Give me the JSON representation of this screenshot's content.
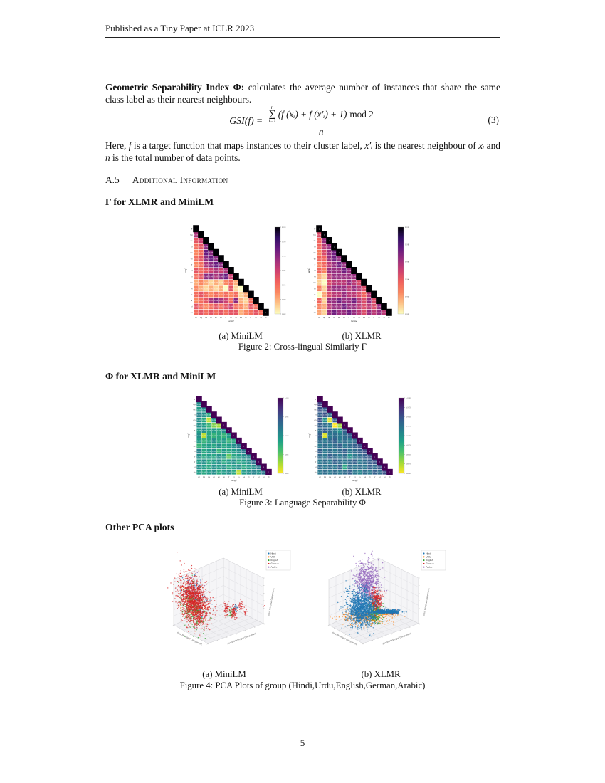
{
  "header": {
    "text": "Published as a Tiny Paper at ICLR 2023"
  },
  "page_number": "5",
  "body": {
    "para1_lead": "Geometric Separability Index Φ:",
    "para1_rest": " calculates the average number of instances that share the same class label as their nearest neighbours.",
    "equation": {
      "lhs": "GSI(f)",
      "eq": "=",
      "sum_top": "n",
      "sigma": "∑",
      "sum_bottom": "i=1",
      "numerator_math": "(f (xᵢ) + f (x′ᵢ) + 1)",
      "numerator_mod": "mod 2",
      "denominator": "n",
      "tag": "(3)"
    },
    "para2_segments": [
      {
        "t": "Here, "
      },
      {
        "t": "f",
        "i": true
      },
      {
        "t": " is a target function that maps instances to their cluster label, "
      },
      {
        "t": "x′ᵢ",
        "i": true
      },
      {
        "t": " is the nearest neighbour of "
      },
      {
        "t": "xᵢ",
        "i": true
      },
      {
        "t": " and "
      },
      {
        "t": "n",
        "i": true
      },
      {
        "t": " is the total number of data points."
      }
    ],
    "heading_a5_num": "A.5",
    "heading_a5_title": "Additional Information",
    "heading_gamma": "Γ for XLMR and MiniLM",
    "heading_phi": "Φ for XLMR and MiniLM",
    "heading_pca": "Other PCA plots"
  },
  "figures": {
    "fig2": {
      "sub_a": "(a) MiniLM",
      "sub_b": "(b) XLMR",
      "caption": "Figure 2: Cross-lingual Similariy Γ"
    },
    "fig3": {
      "sub_a": "(a) MiniLM",
      "sub_b": "(b) XLMR",
      "caption": "Figure 3: Language Separability Φ"
    },
    "fig4": {
      "sub_a": "(a) MiniLM",
      "sub_b": "(b) XLMR",
      "caption": "Figure 4: PCA Plots of group (Hindi,Urdu,English,German,Arabic)"
    }
  },
  "chart_data": [
    {
      "id": "fig2a",
      "type": "heatmap",
      "model": "MiniLM",
      "measure": "Cross-lingual Similarity Γ",
      "xlabel": "lang2",
      "ylabel": "lang1",
      "languages": [
        "ar",
        "bg",
        "de",
        "el",
        "en",
        "es",
        "fr",
        "hi",
        "ru",
        "sw",
        "th",
        "tr",
        "ur",
        "vi",
        "zh"
      ],
      "colormap_stops": [
        "#fcfdbf",
        "#fec287",
        "#fb8761",
        "#f1605d",
        "#cd4071",
        "#9c2e7f",
        "#671b80",
        "#331067",
        "#000004"
      ],
      "vmin": 0.88,
      "vmax": 1.0,
      "colorbar_ticks": [
        "1.00",
        "0.98",
        "0.96",
        "0.94",
        "0.92",
        "0.90",
        "0.88"
      ],
      "matrix_lower": [
        [
          1.0
        ],
        [
          0.95,
          1.0
        ],
        [
          0.93,
          0.94,
          1.0
        ],
        [
          0.92,
          0.93,
          0.96,
          1.0
        ],
        [
          0.91,
          0.92,
          0.97,
          0.96,
          1.0
        ],
        [
          0.92,
          0.93,
          0.96,
          0.97,
          0.96,
          1.0
        ],
        [
          0.91,
          0.92,
          0.95,
          0.96,
          0.97,
          0.96,
          1.0
        ],
        [
          0.93,
          0.92,
          0.93,
          0.94,
          0.95,
          0.94,
          0.95,
          1.0
        ],
        [
          0.92,
          0.93,
          0.96,
          0.96,
          0.95,
          0.96,
          0.97,
          0.94,
          1.0
        ],
        [
          0.9,
          0.91,
          0.9,
          0.89,
          0.9,
          0.89,
          0.91,
          0.92,
          0.9,
          1.0
        ],
        [
          0.91,
          0.9,
          0.89,
          0.9,
          0.89,
          0.9,
          0.88,
          0.93,
          0.89,
          0.88,
          1.0
        ],
        [
          0.92,
          0.93,
          0.92,
          0.91,
          0.92,
          0.91,
          0.92,
          0.91,
          0.92,
          0.89,
          0.9,
          1.0
        ],
        [
          0.91,
          0.92,
          0.93,
          0.95,
          0.96,
          0.95,
          0.94,
          0.92,
          0.96,
          0.9,
          0.89,
          0.92,
          1.0
        ],
        [
          0.93,
          0.92,
          0.91,
          0.92,
          0.93,
          0.92,
          0.93,
          0.94,
          0.92,
          0.91,
          0.9,
          0.93,
          0.92,
          1.0
        ],
        [
          0.92,
          0.93,
          0.92,
          0.93,
          0.92,
          0.93,
          0.92,
          0.93,
          0.93,
          0.9,
          0.91,
          0.92,
          0.93,
          0.92,
          1.0
        ]
      ]
    },
    {
      "id": "fig2b",
      "type": "heatmap",
      "model": "XLMR",
      "measure": "Cross-lingual Similarity Γ",
      "xlabel": "lang2",
      "ylabel": "lang1",
      "languages": [
        "ar",
        "bg",
        "de",
        "el",
        "en",
        "es",
        "fr",
        "hi",
        "ru",
        "sw",
        "th",
        "tr",
        "ur",
        "vi",
        "zh"
      ],
      "colormap_stops": [
        "#fcfdbf",
        "#fec287",
        "#fb8761",
        "#f1605d",
        "#cd4071",
        "#9c2e7f",
        "#671b80",
        "#331067",
        "#000004"
      ],
      "vmin": 0.89,
      "vmax": 1.0,
      "colorbar_ticks": [
        "1.00",
        "0.98",
        "0.96",
        "0.94",
        "0.92",
        "0.90"
      ],
      "matrix_lower": [
        [
          1.0
        ],
        [
          0.94,
          1.0
        ],
        [
          0.93,
          0.96,
          1.0
        ],
        [
          0.93,
          0.95,
          0.96,
          1.0
        ],
        [
          0.92,
          0.94,
          0.96,
          0.97,
          1.0
        ],
        [
          0.93,
          0.93,
          0.96,
          0.97,
          0.96,
          1.0
        ],
        [
          0.92,
          0.93,
          0.95,
          0.96,
          0.97,
          0.96,
          1.0
        ],
        [
          0.93,
          0.92,
          0.96,
          0.96,
          0.96,
          0.97,
          0.96,
          1.0
        ],
        [
          0.91,
          0.9,
          0.95,
          0.96,
          0.96,
          0.96,
          0.96,
          0.96,
          1.0
        ],
        [
          0.9,
          0.89,
          0.94,
          0.95,
          0.95,
          0.95,
          0.96,
          0.95,
          0.94,
          1.0
        ],
        [
          0.92,
          0.9,
          0.95,
          0.96,
          0.96,
          0.96,
          0.95,
          0.96,
          0.95,
          0.94,
          1.0
        ],
        [
          0.89,
          0.91,
          0.94,
          0.95,
          0.95,
          0.96,
          0.95,
          0.95,
          0.94,
          0.93,
          0.95,
          1.0
        ],
        [
          0.93,
          0.9,
          0.96,
          0.96,
          0.97,
          0.96,
          0.96,
          0.97,
          0.95,
          0.94,
          0.96,
          0.94,
          1.0
        ],
        [
          0.92,
          0.91,
          0.95,
          0.96,
          0.96,
          0.97,
          0.96,
          0.96,
          0.95,
          0.94,
          0.95,
          0.94,
          0.96,
          1.0
        ],
        [
          0.91,
          0.9,
          0.96,
          0.97,
          0.96,
          0.96,
          0.97,
          0.96,
          0.95,
          0.94,
          0.96,
          0.95,
          0.96,
          0.95,
          1.0
        ]
      ]
    },
    {
      "id": "fig3a",
      "type": "heatmap",
      "model": "MiniLM",
      "measure": "Language Separability Φ",
      "xlabel": "lang2",
      "ylabel": "lang1",
      "languages": [
        "ar",
        "bg",
        "de",
        "el",
        "en",
        "es",
        "fr",
        "hi",
        "ru",
        "sw",
        "th",
        "tr",
        "ur",
        "vi",
        "zh"
      ],
      "colormap_stops": [
        "#fde725",
        "#a0da39",
        "#4ac16d",
        "#1fa187",
        "#277f8e",
        "#365c8d",
        "#46327e",
        "#440154"
      ],
      "vmin": 0.8,
      "vmax": 1.0,
      "colorbar_ticks": [
        "1.00",
        "0.95",
        "0.90",
        "0.85",
        "0.80"
      ],
      "matrix_lower": [
        [
          1.0
        ],
        [
          0.9,
          1.0
        ],
        [
          0.89,
          0.9,
          1.0
        ],
        [
          0.91,
          0.9,
          0.88,
          1.0
        ],
        [
          0.9,
          0.88,
          0.82,
          0.89,
          1.0
        ],
        [
          0.9,
          0.89,
          0.87,
          0.84,
          0.83,
          1.0
        ],
        [
          0.89,
          0.9,
          0.88,
          0.89,
          0.88,
          0.9,
          1.0
        ],
        [
          0.9,
          0.82,
          0.88,
          0.87,
          0.88,
          0.87,
          0.89,
          1.0
        ],
        [
          0.89,
          0.87,
          0.88,
          0.9,
          0.88,
          0.89,
          0.87,
          0.88,
          1.0
        ],
        [
          0.87,
          0.88,
          0.89,
          0.88,
          0.9,
          0.88,
          0.89,
          0.9,
          0.92,
          1.0
        ],
        [
          0.91,
          0.88,
          0.89,
          0.9,
          0.87,
          0.89,
          0.88,
          0.89,
          0.9,
          0.92,
          1.0
        ],
        [
          0.9,
          0.88,
          0.89,
          0.88,
          0.9,
          0.89,
          0.85,
          0.88,
          0.89,
          0.9,
          0.91,
          1.0
        ],
        [
          0.89,
          0.9,
          0.88,
          0.89,
          0.9,
          0.88,
          0.89,
          0.9,
          0.88,
          0.89,
          0.9,
          0.93,
          1.0
        ],
        [
          0.9,
          0.89,
          0.88,
          0.9,
          0.89,
          0.9,
          0.88,
          0.89,
          0.9,
          0.88,
          0.89,
          0.9,
          0.92,
          1.0
        ],
        [
          0.89,
          0.88,
          0.89,
          0.9,
          0.88,
          0.89,
          0.9,
          0.88,
          0.82,
          0.89,
          0.9,
          0.91,
          0.9,
          0.92,
          1.0
        ]
      ]
    },
    {
      "id": "fig3b",
      "type": "heatmap",
      "model": "XLMR",
      "measure": "Language Separability Φ",
      "xlabel": "lang2",
      "ylabel": "lang1",
      "languages": [
        "ar",
        "bg",
        "de",
        "el",
        "en",
        "es",
        "fr",
        "hi",
        "ru",
        "sw",
        "th",
        "tr",
        "ur",
        "vi",
        "zh"
      ],
      "colormap_stops": [
        "#fde725",
        "#a0da39",
        "#4ac16d",
        "#1fa187",
        "#277f8e",
        "#365c8d",
        "#46327e",
        "#440154"
      ],
      "vmin": 0.8,
      "vmax": 1.0,
      "colorbar_ticks": [
        "1.000",
        "0.975",
        "0.950",
        "0.925",
        "0.900",
        "0.875",
        "0.850",
        "0.825",
        "0.800"
      ],
      "matrix_lower": [
        [
          1.0
        ],
        [
          0.96,
          1.0
        ],
        [
          0.95,
          0.94,
          1.0
        ],
        [
          0.94,
          0.95,
          0.93,
          1.0
        ],
        [
          0.95,
          0.9,
          0.81,
          0.94,
          1.0
        ],
        [
          0.94,
          0.93,
          0.92,
          0.8,
          0.83,
          1.0
        ],
        [
          0.93,
          0.94,
          0.93,
          0.92,
          0.9,
          0.94,
          1.0
        ],
        [
          0.94,
          0.81,
          0.92,
          0.93,
          0.92,
          0.93,
          0.94,
          1.0
        ],
        [
          0.93,
          0.92,
          0.93,
          0.94,
          0.92,
          0.93,
          0.92,
          0.93,
          1.0
        ],
        [
          0.92,
          0.93,
          0.92,
          0.93,
          0.94,
          0.92,
          0.93,
          0.94,
          0.95,
          1.0
        ],
        [
          0.94,
          0.92,
          0.93,
          0.92,
          0.93,
          0.94,
          0.92,
          0.93,
          0.94,
          0.95,
          1.0
        ],
        [
          0.93,
          0.92,
          0.94,
          0.93,
          0.92,
          0.93,
          0.9,
          0.92,
          0.93,
          0.94,
          0.95,
          1.0
        ],
        [
          0.92,
          0.93,
          0.92,
          0.94,
          0.93,
          0.92,
          0.93,
          0.94,
          0.92,
          0.93,
          0.94,
          0.95,
          1.0
        ],
        [
          0.93,
          0.92,
          0.93,
          0.92,
          0.94,
          0.88,
          0.93,
          0.92,
          0.93,
          0.92,
          0.94,
          0.93,
          0.95,
          1.0
        ],
        [
          0.92,
          0.93,
          0.92,
          0.93,
          0.92,
          0.93,
          0.94,
          0.92,
          0.91,
          0.93,
          0.92,
          0.94,
          0.93,
          0.95,
          1.0
        ]
      ]
    },
    {
      "id": "fig4a",
      "type": "scatter3d",
      "model": "MiniLM",
      "axes": {
        "x": "First Principal Component",
        "y": "Second Principal Component",
        "z": "Third Principal Component"
      },
      "legend": [
        {
          "label": "Hindi",
          "color": "#1f77b4"
        },
        {
          "label": "Urdu",
          "color": "#ff7f0e"
        },
        {
          "label": "English",
          "color": "#2ca02c"
        },
        {
          "label": "German",
          "color": "#d62728"
        },
        {
          "label": "Arabic",
          "color": "#9467bd"
        }
      ],
      "series": [
        {
          "name": "Arabic",
          "color": "#9467bd",
          "clusters": [
            [
              0.25,
              0.38,
              0.03,
              0.06,
              70,
              -15
            ]
          ]
        },
        {
          "name": "Urdu",
          "color": "#ff7f0e",
          "clusters": [
            [
              0.25,
              0.48,
              0.035,
              0.08,
              90,
              -15
            ]
          ]
        },
        {
          "name": "Hindi",
          "color": "#1f77b4",
          "clusters": [
            [
              0.26,
              0.42,
              0.04,
              0.09,
              140,
              -15
            ],
            [
              0.53,
              0.52,
              0.008,
              0.015,
              20,
              0
            ]
          ]
        },
        {
          "name": "English",
          "color": "#2ca02c",
          "clusters": [
            [
              0.24,
              0.52,
              0.04,
              0.09,
              260,
              -15
            ],
            [
              0.5,
              0.56,
              0.01,
              0.02,
              35,
              0
            ]
          ]
        },
        {
          "name": "German",
          "color": "#d62728",
          "clusters": [
            [
              0.245,
              0.46,
              0.045,
              0.11,
              1600,
              -15
            ],
            [
              0.47,
              0.52,
              0.01,
              0.025,
              60,
              0
            ],
            [
              0.52,
              0.55,
              0.012,
              0.03,
              80,
              0
            ],
            [
              0.57,
              0.5,
              0.01,
              0.02,
              40,
              0
            ],
            [
              0.6,
              0.55,
              0.006,
              0.012,
              15,
              0
            ],
            [
              0.725,
              0.5,
              0.002,
              0.003,
              2,
              0
            ]
          ]
        }
      ]
    },
    {
      "id": "fig4b",
      "type": "scatter3d",
      "model": "XLMR",
      "axes": {
        "x": "First Principal Component",
        "y": "Second Principal Component",
        "z": "Third Principal Component"
      },
      "legend": [
        {
          "label": "Hindi",
          "color": "#1f77b4"
        },
        {
          "label": "Urdu",
          "color": "#ff7f0e"
        },
        {
          "label": "English",
          "color": "#2ca02c"
        },
        {
          "label": "German",
          "color": "#d62728"
        },
        {
          "label": "Arabic",
          "color": "#9467bd"
        }
      ],
      "series": [
        {
          "name": "Arabic",
          "color": "#9467bd",
          "clusters": [
            [
              0.37,
              0.3,
              0.04,
              0.08,
              800,
              0
            ]
          ]
        },
        {
          "name": "Urdu",
          "color": "#ff7f0e",
          "clusters": [
            [
              0.36,
              0.6,
              0.08,
              0.035,
              400,
              0
            ],
            [
              0.52,
              0.57,
              0.03,
              0.01,
              60,
              0
            ]
          ]
        },
        {
          "name": "English",
          "color": "#2ca02c",
          "clusters": [
            [
              0.42,
              0.55,
              0.025,
              0.05,
              300,
              0
            ]
          ]
        },
        {
          "name": "German",
          "color": "#d62728",
          "clusters": [
            [
              0.43,
              0.46,
              0.02,
              0.05,
              350,
              0
            ],
            [
              0.55,
              0.56,
              0.015,
              0.006,
              40,
              0
            ]
          ]
        },
        {
          "name": "Hindi",
          "color": "#1f77b4",
          "clusters": [
            [
              0.33,
              0.52,
              0.05,
              0.08,
              1600,
              0
            ],
            [
              0.5,
              0.55,
              0.045,
              0.008,
              600,
              0
            ]
          ]
        }
      ]
    }
  ]
}
